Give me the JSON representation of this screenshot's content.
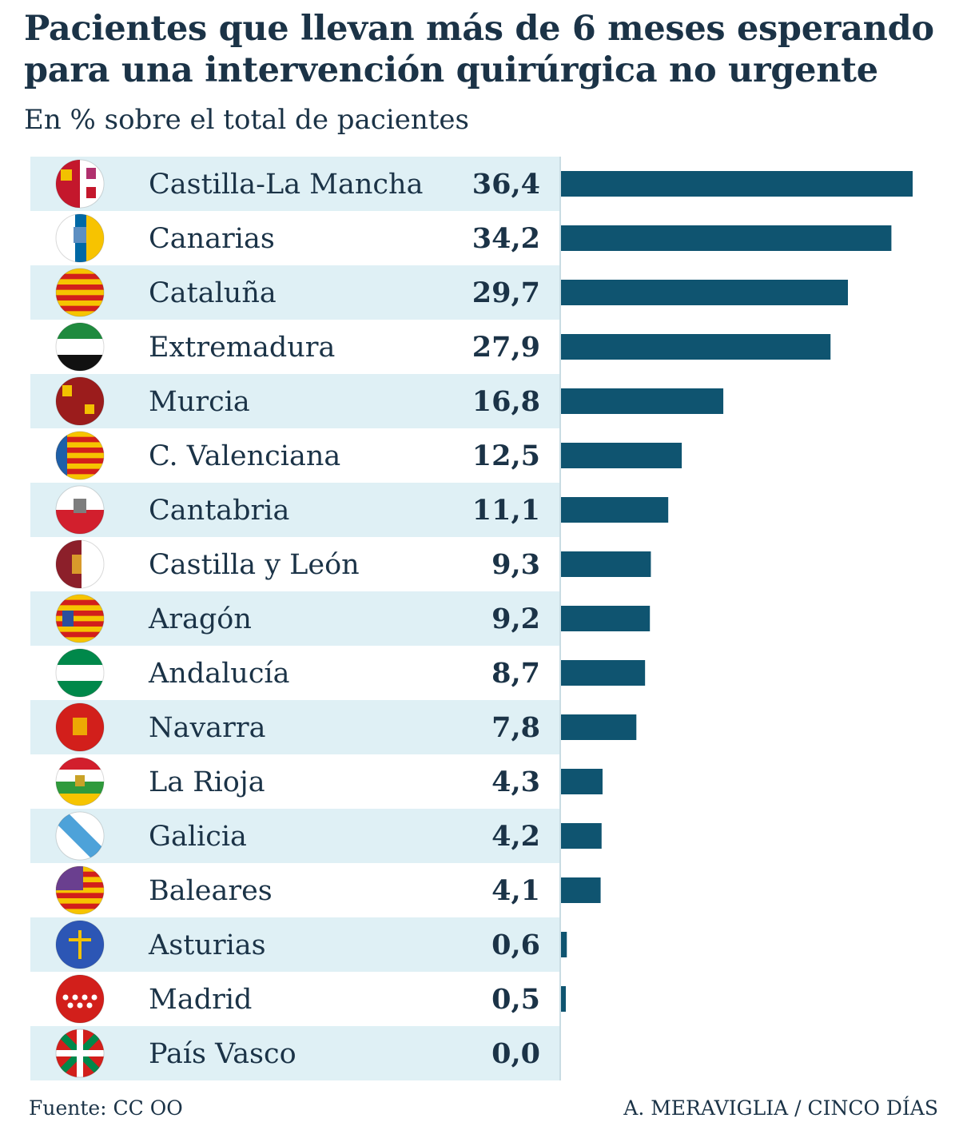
{
  "chart_data": {
    "type": "bar",
    "orientation": "horizontal",
    "title": "Pacientes que llevan más de 6 meses esperando para una intervención quirúrgica no urgente",
    "subtitle": "En % sobre el total de pacientes",
    "categories": [
      "Castilla-La Mancha",
      "Canarias",
      "Cataluña",
      "Extremadura",
      "Murcia",
      "C. Valenciana",
      "Cantabria",
      "Castilla y León",
      "Aragón",
      "Andalucía",
      "Navarra",
      "La Rioja",
      "Galicia",
      "Baleares",
      "Asturias",
      "Madrid",
      "País Vasco"
    ],
    "values": [
      36.4,
      34.2,
      29.7,
      27.9,
      16.8,
      12.5,
      11.1,
      9.3,
      9.2,
      8.7,
      7.8,
      4.3,
      4.2,
      4.1,
      0.6,
      0.5,
      0.0
    ],
    "value_labels": [
      "36,4",
      "34,2",
      "29,7",
      "27,9",
      "16,8",
      "12,5",
      "11,1",
      "9,3",
      "9,2",
      "8,7",
      "7,8",
      "4,3",
      "4,2",
      "4,1",
      "0,6",
      "0,5",
      "0,0"
    ],
    "xlim": [
      0,
      36.4
    ],
    "grid": false,
    "legend": "none",
    "source": "Fuente: CC OO",
    "credit": "A. MERAVIGLIA / CINCO DÍAS",
    "colors": {
      "bar": "#0f5470",
      "band": "#dff0f5",
      "text": "#1b3347",
      "axis": "#c9dce3"
    },
    "flag_icons": [
      "castilla-la-mancha-flag-icon",
      "canarias-flag-icon",
      "cataluna-flag-icon",
      "extremadura-flag-icon",
      "murcia-flag-icon",
      "c-valenciana-flag-icon",
      "cantabria-flag-icon",
      "castilla-y-leon-flag-icon",
      "aragon-flag-icon",
      "andalucia-flag-icon",
      "navarra-flag-icon",
      "la-rioja-flag-icon",
      "galicia-flag-icon",
      "baleares-flag-icon",
      "asturias-flag-icon",
      "madrid-flag-icon",
      "pais-vasco-flag-icon"
    ]
  }
}
